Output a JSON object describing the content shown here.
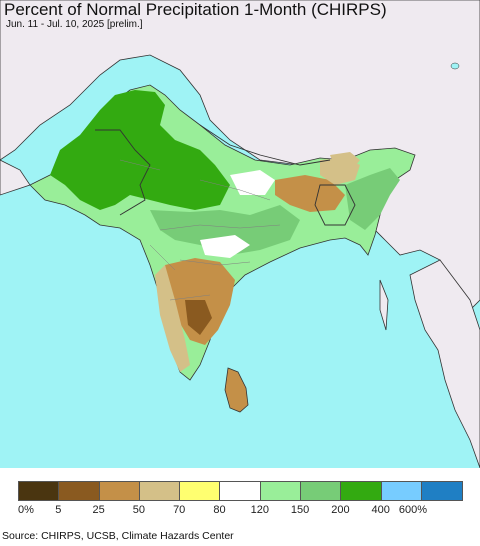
{
  "title": "Percent of Normal Precipitation 1-Month (CHIRPS)",
  "subtitle": "Jun. 11 - Jul. 10, 2025 [prelim.]",
  "source": "Source: CHIRPS, UCSB, Climate Hazards Center",
  "colors": {
    "ocean": "#9ff3f5",
    "outside_land": "#efeaf0",
    "border": "#333333",
    "admin_border": "#808080"
  },
  "legend": {
    "swatches": [
      "#4a3510",
      "#8a5a20",
      "#c49048",
      "#d4c088",
      "#ffff70",
      "#ffffff",
      "#99ee99",
      "#77cc77",
      "#33aa11",
      "#77ccff",
      "#1f7fc4"
    ],
    "labels": [
      "0%",
      "5",
      "25",
      "50",
      "70",
      "80",
      "120",
      "150",
      "200",
      "400",
      "600%"
    ]
  }
}
